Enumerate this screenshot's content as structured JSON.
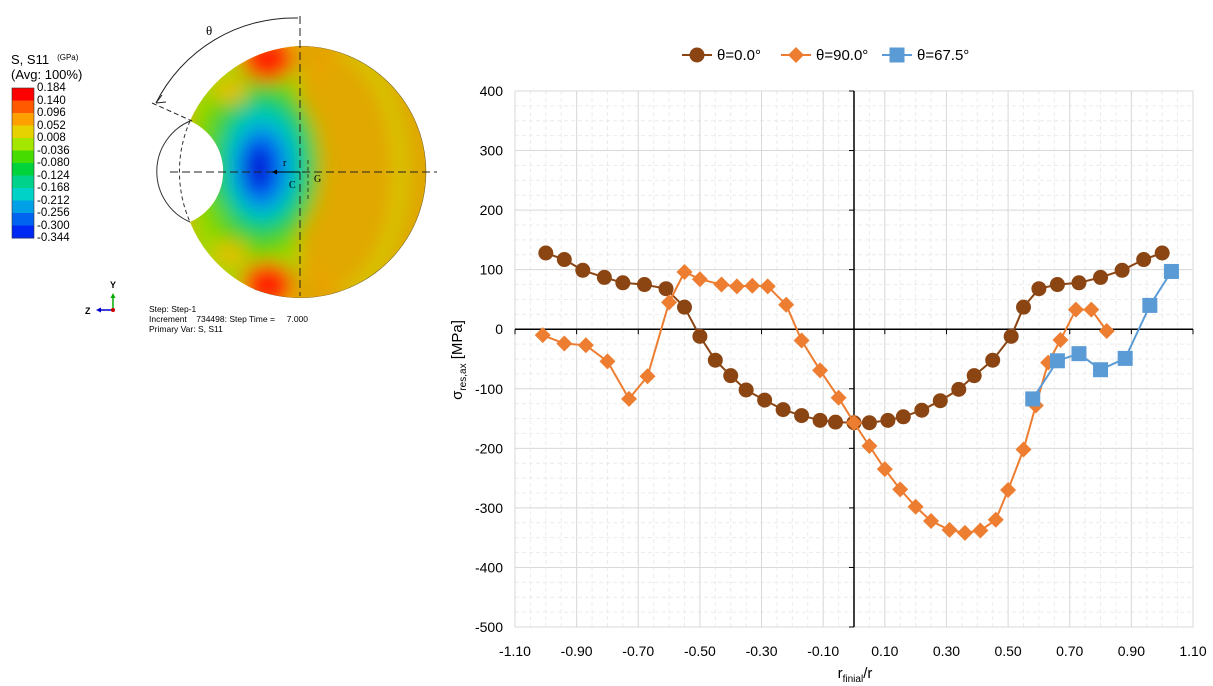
{
  "contour": {
    "title_line1": "S, S11",
    "units": "(GPa)",
    "title_line2": "(Avg: 100%)",
    "levels": [
      "0.184",
      "0.140",
      "0.096",
      "0.052",
      "0.008",
      "-0.036",
      "-0.080",
      "-0.124",
      "-0.168",
      "-0.212",
      "-0.256",
      "-0.300",
      "-0.344"
    ],
    "level_colors": [
      "#ff0000",
      "#ff5a00",
      "#ffa000",
      "#e6d200",
      "#a5e600",
      "#46dc00",
      "#00d23c",
      "#00d28c",
      "#00d2c8",
      "#00a0e6",
      "#0064f0",
      "#0028f5",
      "#0000c8"
    ],
    "angle_label": "θ",
    "radius_label": "r",
    "center_label": "C",
    "centroid_label": "G",
    "axis_y": "Y",
    "axis_z": "Z",
    "step_info": [
      "Step: Step-1",
      "Increment    734498: Step Time =     7.000",
      "Primary Var: S, S11"
    ]
  },
  "chart_data": {
    "type": "line",
    "ylabel_main": "σ",
    "ylabel_sub": "res,ax",
    "ylabel_unit": " [MPa]",
    "xlabel_main": "r",
    "xlabel_sub": "finial",
    "xlabel_rest": "/r",
    "xlim": [
      -1.1,
      1.1
    ],
    "ylim": [
      -500,
      400
    ],
    "xticks": [
      "-1.10",
      "-0.90",
      "-0.70",
      "-0.50",
      "-0.30",
      "-0.10",
      "0.10",
      "0.30",
      "0.50",
      "0.70",
      "0.90",
      "1.10"
    ],
    "yticks": [
      "400",
      "300",
      "200",
      "100",
      "0",
      "-100",
      "-200",
      "-300",
      "-400",
      "-500"
    ],
    "grid": true,
    "legend_position": "top",
    "series": [
      {
        "name": "θ=0.0°",
        "color": "#8b4513",
        "marker": "circle",
        "x": [
          -1.0,
          -0.94,
          -0.88,
          -0.81,
          -0.75,
          -0.68,
          -0.61,
          -0.55,
          -0.5,
          -0.45,
          -0.4,
          -0.35,
          -0.29,
          -0.23,
          -0.17,
          -0.11,
          -0.06,
          0.0,
          0.05,
          0.11,
          0.16,
          0.22,
          0.28,
          0.34,
          0.39,
          0.45,
          0.51,
          0.55,
          0.6,
          0.66,
          0.73,
          0.8,
          0.87,
          0.94,
          1.0
        ],
        "y": [
          128,
          117,
          99,
          87,
          78,
          75,
          68,
          37,
          -12,
          -52,
          -78,
          -102,
          -119,
          -135,
          -145,
          -153,
          -156,
          -157,
          -157,
          -153,
          -147,
          -136,
          -120,
          -101,
          -78,
          -52,
          -12,
          37,
          68,
          75,
          78,
          87,
          99,
          117,
          128
        ]
      },
      {
        "name": "θ=90.0°",
        "color": "#ed7d31",
        "marker": "diamond",
        "x": [
          -1.01,
          -0.94,
          -0.87,
          -0.8,
          -0.73,
          -0.67,
          -0.6,
          -0.55,
          -0.5,
          -0.43,
          -0.38,
          -0.33,
          -0.28,
          -0.22,
          -0.17,
          -0.11,
          -0.05,
          0.0,
          0.05,
          0.1,
          0.15,
          0.2,
          0.25,
          0.31,
          0.36,
          0.41,
          0.46,
          0.5,
          0.55,
          0.59,
          0.63,
          0.67,
          0.72,
          0.77,
          0.82
        ],
        "y": [
          -10,
          -24,
          -27,
          -54,
          -117,
          -79,
          45,
          96,
          84,
          75,
          72,
          73,
          72,
          41,
          -19,
          -69,
          -115,
          -157,
          -196,
          -235,
          -269,
          -298,
          -322,
          -337,
          -342,
          -338,
          -320,
          -270,
          -202,
          -128,
          -56,
          -18,
          33,
          33,
          -3
        ]
      },
      {
        "name": "θ=67.5°",
        "color": "#5b9bd5",
        "marker": "square",
        "x": [
          0.58,
          0.66,
          0.73,
          0.8,
          0.88,
          0.96,
          1.03
        ],
        "y": [
          -117,
          -53,
          -41,
          -68,
          -49,
          40,
          97
        ]
      }
    ]
  }
}
